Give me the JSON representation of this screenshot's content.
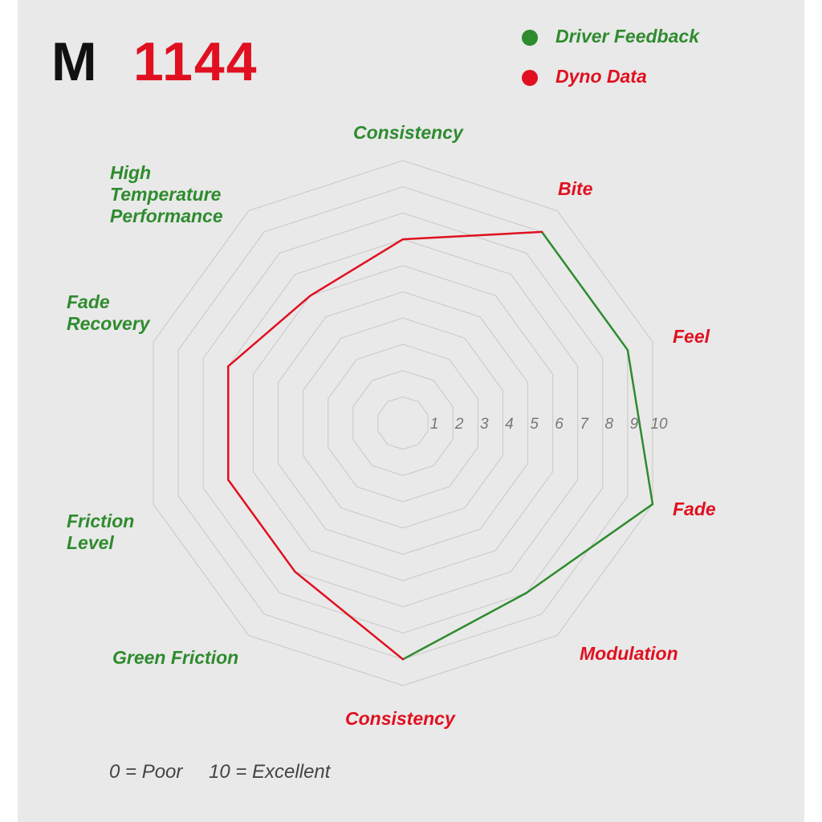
{
  "chart_data": {
    "type": "radar",
    "title": {
      "prefix": "M",
      "number": "1144"
    },
    "prefix_color": "#111111",
    "number_color": "#e01020",
    "categories": [
      "Consistency",
      "Bite",
      "Feel",
      "Fade",
      "Modulation",
      "Consistency",
      "Green Friction",
      "Friction Level",
      "Fade Recovery",
      "High Temperature Performance"
    ],
    "category_colors": [
      "#2e8b2e",
      "#e01020",
      "#e01020",
      "#e01020",
      "#e01020",
      "#e01020",
      "#2e8b2e",
      "#2e8b2e",
      "#2e8b2e",
      "#2e8b2e"
    ],
    "series": [
      {
        "name": "Driver Feedback",
        "color": "#2e8b2e",
        "values": [
          null,
          9,
          9,
          10,
          8,
          9,
          null,
          null,
          null,
          null
        ]
      },
      {
        "name": "Dyno Data",
        "color": "#e01020",
        "values": [
          7,
          9,
          null,
          null,
          null,
          9,
          7,
          7,
          7,
          6
        ]
      }
    ],
    "rlim": [
      0,
      10
    ],
    "rticks": [
      1,
      2,
      3,
      4,
      5,
      6,
      7,
      8,
      9,
      10
    ],
    "grid": true,
    "notes": [
      "0 = Poor",
      "10 = Excellent"
    ]
  }
}
